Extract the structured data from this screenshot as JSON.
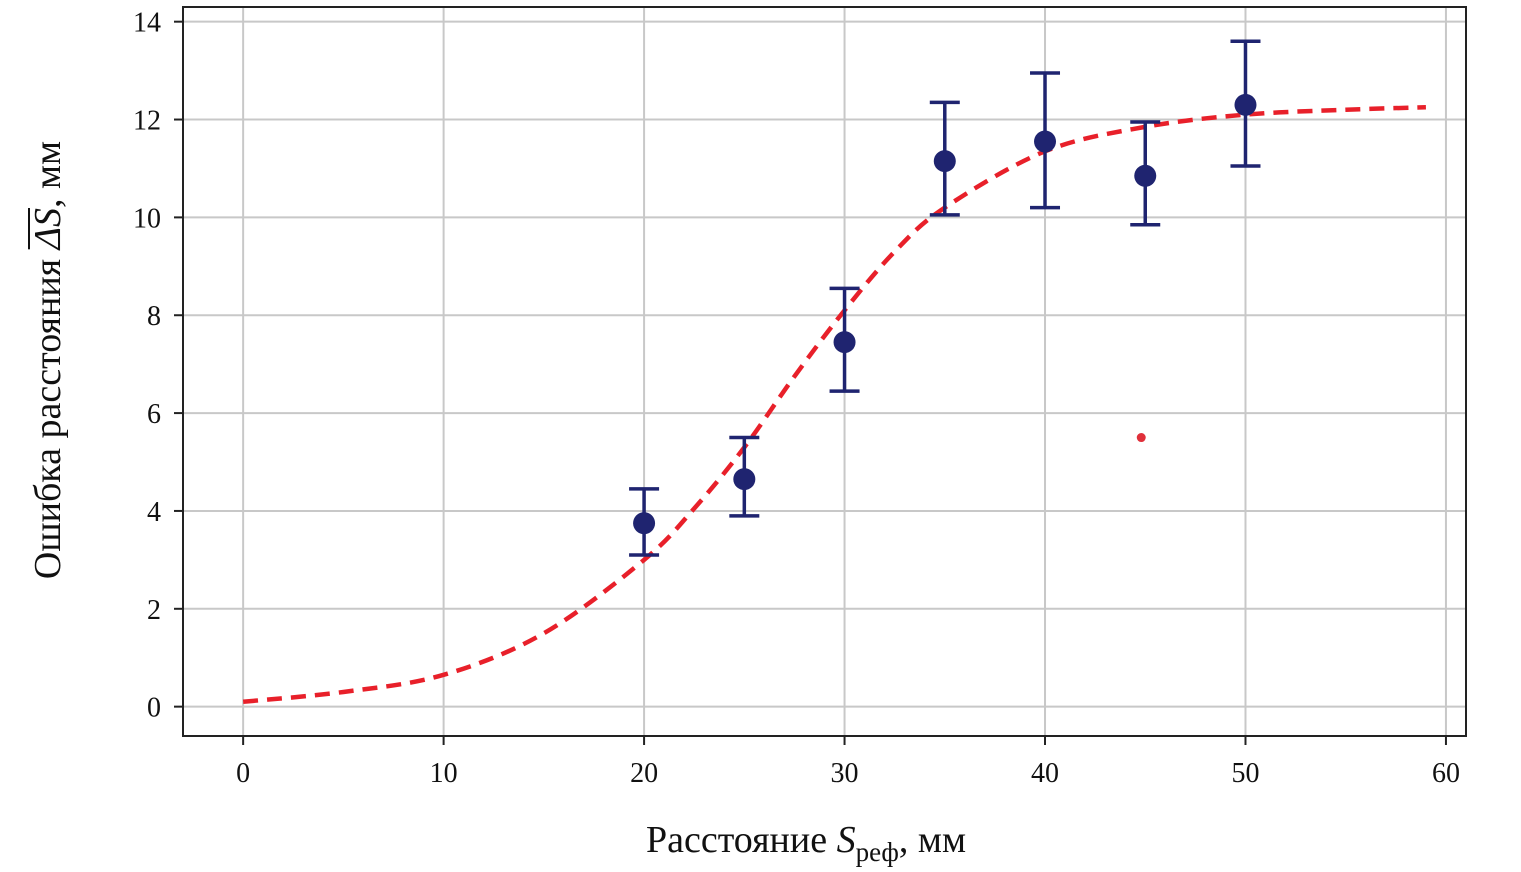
{
  "chart_data": {
    "type": "scatter",
    "xlabel": {
      "prefix": "Расстояние ",
      "symbol": "S",
      "subscript": "реф",
      "suffix": ", мм"
    },
    "ylabel": {
      "prefix": "Ошибка расстояния ",
      "symbol": "ΔS",
      "suffix": ", мм"
    },
    "xlim": [
      -3,
      61
    ],
    "ylim": [
      -0.6,
      14.3
    ],
    "x_ticks": [
      0,
      10,
      20,
      30,
      40,
      50,
      60
    ],
    "y_ticks": [
      0,
      2,
      4,
      6,
      8,
      10,
      12,
      14
    ],
    "grid": true,
    "legend": "none",
    "series": [
      {
        "kind": "errorbar",
        "color": "#1f2470",
        "points": [
          {
            "x": 20,
            "y": 3.75,
            "low": 3.1,
            "high": 4.45
          },
          {
            "x": 25,
            "y": 4.65,
            "low": 3.9,
            "high": 5.5
          },
          {
            "x": 30,
            "y": 7.45,
            "low": 6.45,
            "high": 8.55
          },
          {
            "x": 35,
            "y": 11.15,
            "low": 10.05,
            "high": 12.35
          },
          {
            "x": 40,
            "y": 11.55,
            "low": 10.2,
            "high": 12.95
          },
          {
            "x": 45,
            "y": 10.85,
            "low": 9.85,
            "high": 11.95
          },
          {
            "x": 50,
            "y": 12.3,
            "low": 11.05,
            "high": 13.6
          }
        ]
      },
      {
        "kind": "fit-curve",
        "style": "dashed",
        "color": "#e8202a",
        "x": [
          0,
          5,
          10,
          15,
          20,
          22.5,
          25,
          27.5,
          30,
          32.5,
          35,
          40,
          45,
          50,
          55,
          59
        ],
        "y": [
          0.1,
          0.3,
          0.65,
          1.5,
          3.0,
          4.05,
          5.3,
          6.75,
          8.1,
          9.3,
          10.2,
          11.35,
          11.85,
          12.1,
          12.2,
          12.25
        ]
      },
      {
        "kind": "stray-point",
        "color": "#e0303a",
        "x": 44.8,
        "y": 5.5
      }
    ]
  }
}
